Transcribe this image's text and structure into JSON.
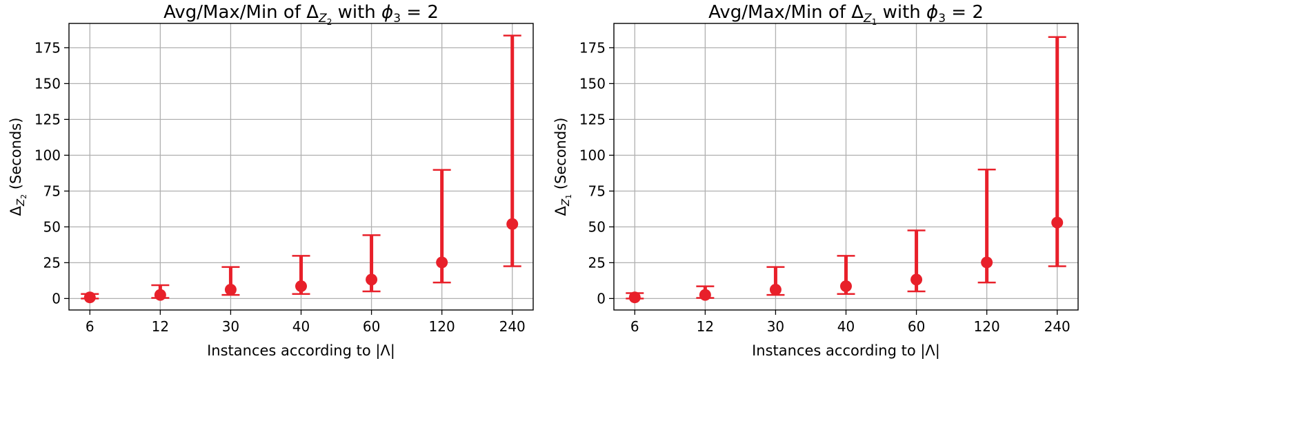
{
  "palette": {
    "marker": "#e8202a",
    "grid": "#b0b0b0",
    "axis": "#000000",
    "background": "#ffffff"
  },
  "chart_data": [
    {
      "type": "errorbar",
      "title_prefix": "Avg/Max/Min of ",
      "title_symbol": "Δ",
      "title_symbol_sub": "Z",
      "title_symbol_subsub": "2",
      "title_suffix": " with ",
      "title_phi": "ϕ",
      "title_phi_sub": "3",
      "title_eq": " = 2",
      "xlabel": "Instances according to |Λ|",
      "ylabel_symbol": "Δ",
      "ylabel_sub": "Z",
      "ylabel_subsub": "2",
      "ylabel_unit": " (Seconds)",
      "categories": [
        "6",
        "12",
        "30",
        "40",
        "60",
        "120",
        "240"
      ],
      "avg": [
        0.8,
        2.5,
        6.2,
        8.6,
        13.2,
        25.2,
        52
      ],
      "max": [
        3.2,
        9.3,
        22,
        29.8,
        44.2,
        89.8,
        183.5
      ],
      "min": [
        0,
        0.4,
        2.5,
        3.2,
        5,
        11.2,
        22.5
      ],
      "yticks": [
        0,
        25,
        50,
        75,
        100,
        125,
        150,
        175
      ],
      "ylim": [
        -8,
        192
      ],
      "grid": true
    },
    {
      "type": "errorbar",
      "title_prefix": "Avg/Max/Min of ",
      "title_symbol": "Δ",
      "title_symbol_sub": "Z",
      "title_symbol_subsub": "1",
      "title_suffix": " with ",
      "title_phi": "ϕ",
      "title_phi_sub": "3",
      "title_eq": " = 2",
      "xlabel": "Instances according to |Λ|",
      "ylabel_symbol": "Δ",
      "ylabel_sub": "Z",
      "ylabel_subsub": "1",
      "ylabel_unit": " (Seconds)",
      "categories": [
        "6",
        "12",
        "30",
        "40",
        "60",
        "120",
        "240"
      ],
      "avg": [
        0.8,
        2.5,
        6.2,
        8.6,
        13.2,
        25.2,
        53
      ],
      "max": [
        3.8,
        8.5,
        22,
        29.8,
        47.5,
        90,
        182.5
      ],
      "min": [
        0,
        0.4,
        2.5,
        3.2,
        5,
        11.2,
        22.5
      ],
      "yticks": [
        0,
        25,
        50,
        75,
        100,
        125,
        150,
        175
      ],
      "ylim": [
        -8,
        192
      ],
      "grid": true
    }
  ]
}
